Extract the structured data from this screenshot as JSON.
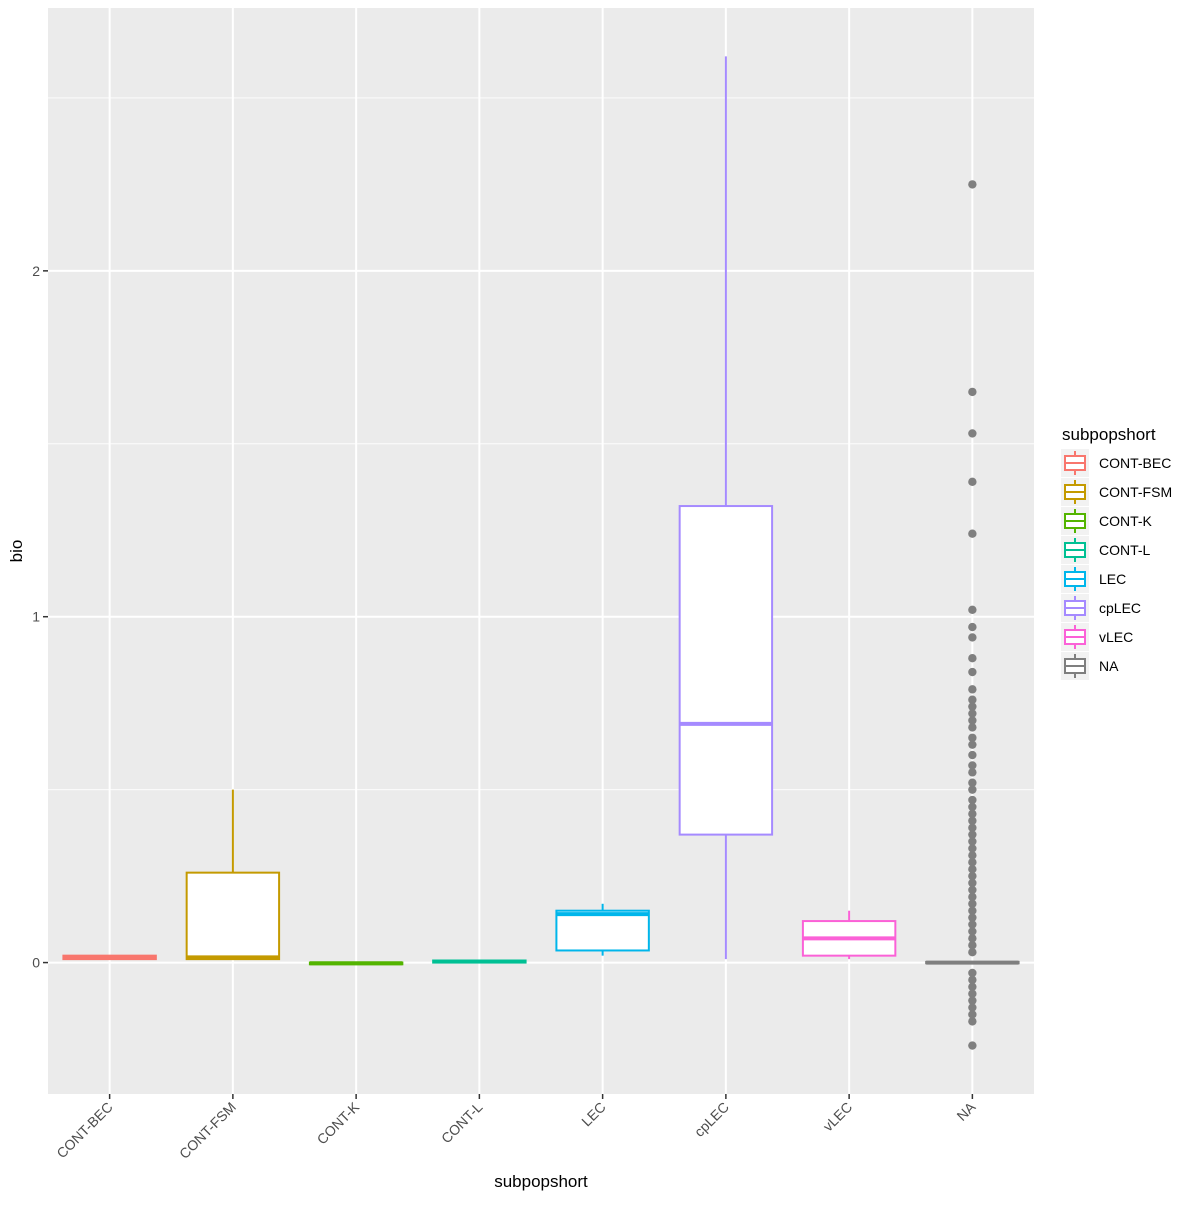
{
  "chart_data": {
    "type": "boxplot",
    "title": "",
    "xlabel": "subpopshort",
    "ylabel": "bio",
    "ylim": [
      -0.38,
      2.76
    ],
    "yticks": [
      0,
      1,
      2
    ],
    "ytick_labels": [
      "0",
      "1",
      "2"
    ],
    "categories": [
      "CONT-BEC",
      "CONT-FSM",
      "CONT-K",
      "CONT-L",
      "LEC",
      "cpLEC",
      "vLEC",
      "NA"
    ],
    "legend": {
      "title": "subpopshort",
      "position": "right",
      "entries": [
        "CONT-BEC",
        "CONT-FSM",
        "CONT-K",
        "CONT-L",
        "LEC",
        "cpLEC",
        "vLEC",
        "NA"
      ]
    },
    "colors": [
      "#F8766D",
      "#C49A00",
      "#53B400",
      "#00C094",
      "#00B6EB",
      "#A58AFF",
      "#FB61D7",
      "#7F7F7F"
    ],
    "series": [
      {
        "name": "CONT-BEC",
        "whisker_low": 0.01,
        "q1": 0.01,
        "median": 0.015,
        "q3": 0.02,
        "whisker_high": 0.02,
        "outliers": []
      },
      {
        "name": "CONT-FSM",
        "whisker_low": 0.01,
        "q1": 0.01,
        "median": 0.015,
        "q3": 0.26,
        "whisker_high": 0.5,
        "outliers": []
      },
      {
        "name": "CONT-K",
        "whisker_low": -0.005,
        "q1": -0.005,
        "median": -0.002,
        "q3": 0.0,
        "whisker_high": 0.0,
        "outliers": []
      },
      {
        "name": "CONT-L",
        "whisker_low": 0.0,
        "q1": 0.0,
        "median": 0.003,
        "q3": 0.006,
        "whisker_high": 0.006,
        "outliers": []
      },
      {
        "name": "LEC",
        "whisker_low": 0.02,
        "q1": 0.035,
        "median": 0.14,
        "q3": 0.15,
        "whisker_high": 0.17,
        "outliers": []
      },
      {
        "name": "cpLEC",
        "whisker_low": 0.01,
        "q1": 0.37,
        "median": 0.69,
        "q3": 1.32,
        "whisker_high": 2.62,
        "outliers": []
      },
      {
        "name": "vLEC",
        "whisker_low": 0.01,
        "q1": 0.02,
        "median": 0.07,
        "q3": 0.12,
        "whisker_high": 0.15,
        "outliers": []
      },
      {
        "name": "NA",
        "whisker_low": -0.004,
        "q1": -0.002,
        "median": 0.0,
        "q3": 0.002,
        "whisker_high": 0.004,
        "outliers": [
          2.25,
          1.65,
          1.53,
          1.39,
          1.24,
          1.02,
          0.97,
          0.94,
          0.88,
          0.84,
          0.79,
          0.76,
          0.74,
          0.72,
          0.7,
          0.68,
          0.65,
          0.63,
          0.6,
          0.57,
          0.55,
          0.52,
          0.5,
          0.47,
          0.45,
          0.43,
          0.41,
          0.39,
          0.37,
          0.35,
          0.33,
          0.31,
          0.29,
          0.27,
          0.25,
          0.23,
          0.21,
          0.19,
          0.17,
          0.15,
          0.13,
          0.11,
          0.09,
          0.07,
          0.05,
          0.03,
          -0.03,
          -0.05,
          -0.07,
          -0.09,
          -0.11,
          -0.13,
          -0.15,
          -0.17,
          -0.24
        ]
      }
    ]
  }
}
